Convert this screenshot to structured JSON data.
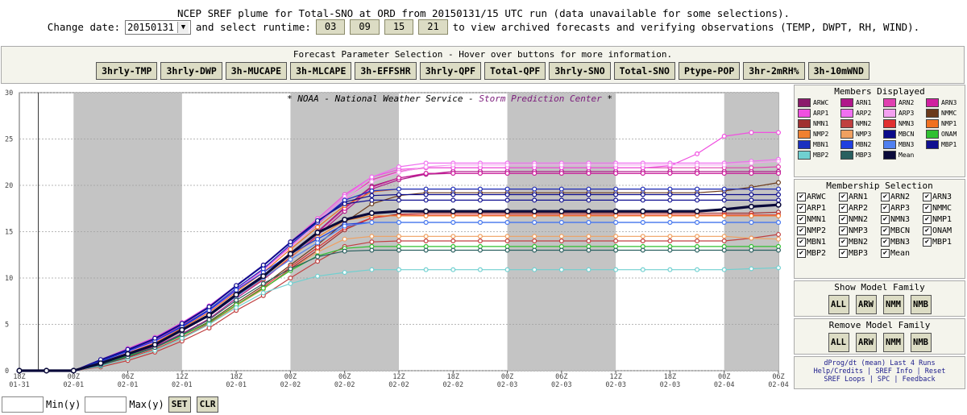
{
  "header": {
    "title": "NCEP SREF plume for Total-SNO at ORD from 20150131/15 UTC run (data unavailable for some selections).",
    "change_date_label": "Change date:",
    "selected_date": "20150131",
    "runtime_label": "and select runtime:",
    "runtimes": [
      "03",
      "09",
      "15",
      "21"
    ],
    "archive_text": "to view archived forecasts and verifying observations (TEMP, DWPT, RH, WIND)."
  },
  "params": {
    "title": "Forecast Parameter Selection - Hover over buttons for more information.",
    "buttons": [
      "3hrly-TMP",
      "3hrly-DWP",
      "3h-MUCAPE",
      "3h-MLCAPE",
      "3h-EFFSHR",
      "3hrly-QPF",
      "Total-QPF",
      "3hrly-SNO",
      "Total-SNO",
      "Ptype-POP",
      "3hr-2mRH%",
      "3h-10mWND"
    ]
  },
  "chart_header": {
    "noaa": "* NOAA - National Weather Service -",
    "spc": "Storm Prediction Center",
    "end": "*"
  },
  "colors": {
    "night_shading": "#c4c4c4",
    "mean": "#0a0a3a",
    "spc_text": "#7a1a7a"
  },
  "chart_data": {
    "type": "line",
    "title": "",
    "xlabel": "",
    "ylabel": "",
    "ylim": [
      0,
      30
    ],
    "yticks": [
      0,
      5,
      10,
      15,
      20,
      25,
      30
    ],
    "x_tick_labels": [
      [
        "18Z",
        "01-31"
      ],
      [
        "00Z",
        "02-01"
      ],
      [
        "06Z",
        "02-01"
      ],
      [
        "12Z",
        "02-01"
      ],
      [
        "18Z",
        "02-01"
      ],
      [
        "00Z",
        "02-02"
      ],
      [
        "06Z",
        "02-02"
      ],
      [
        "12Z",
        "02-02"
      ],
      [
        "18Z",
        "02-02"
      ],
      [
        "00Z",
        "02-03"
      ],
      [
        "06Z",
        "02-03"
      ],
      [
        "12Z",
        "02-03"
      ],
      [
        "18Z",
        "02-03"
      ],
      [
        "00Z",
        "02-04"
      ],
      [
        "06Z",
        "02-04"
      ]
    ],
    "x_hours_start": 18,
    "x_step_hours": 3,
    "x_count": 29,
    "night_bands": [
      [
        "02-01 00Z",
        "02-01 12Z"
      ],
      [
        "02-02 00Z",
        "02-02 12Z"
      ],
      [
        "02-03 00Z",
        "02-03 12Z"
      ],
      [
        "02-04 00Z",
        "02-04 06Z"
      ]
    ],
    "series": [
      {
        "name": "ARWC",
        "color": "#8b1a6b",
        "values": [
          0,
          0,
          0,
          0.9,
          1.9,
          2.9,
          4.4,
          6.0,
          8.2,
          10.2,
          12.6,
          15.0,
          17.6,
          19.9,
          20.8,
          21.2,
          21.3,
          21.3,
          21.3,
          21.3,
          21.3,
          21.3,
          21.3,
          21.3,
          21.3,
          21.3,
          21.3,
          21.3,
          21.3
        ]
      },
      {
        "name": "ARN1",
        "color": "#b0178a",
        "values": [
          0,
          0,
          0,
          0.7,
          1.6,
          2.6,
          4.0,
          5.6,
          7.8,
          9.8,
          12.2,
          14.6,
          17.2,
          19.6,
          20.6,
          21.2,
          21.5,
          21.5,
          21.5,
          21.5,
          21.5,
          21.5,
          21.5,
          21.5,
          21.5,
          21.5,
          21.5,
          21.5,
          21.5
        ]
      },
      {
        "name": "ARN2",
        "color": "#e040b0",
        "values": [
          0,
          0,
          0,
          1.1,
          2.2,
          3.3,
          4.9,
          6.6,
          8.8,
          10.9,
          13.4,
          15.8,
          18.4,
          20.6,
          21.5,
          21.9,
          21.9,
          21.9,
          21.9,
          21.9,
          21.9,
          21.9,
          21.9,
          21.9,
          21.9,
          21.9,
          21.9,
          21.9,
          22.0
        ]
      },
      {
        "name": "ARN3",
        "color": "#d020a0",
        "values": [
          0,
          0,
          0,
          0.8,
          1.8,
          2.8,
          4.3,
          5.9,
          8.1,
          10.1,
          12.5,
          14.9,
          17.5,
          19.8,
          20.8,
          21.3,
          21.3,
          21.3,
          21.3,
          21.3,
          21.3,
          21.3,
          21.3,
          21.3,
          21.3,
          21.3,
          21.3,
          21.3,
          21.3
        ]
      },
      {
        "name": "ARP1",
        "color": "#f050e0",
        "values": [
          0,
          0,
          0,
          1.2,
          2.4,
          3.6,
          5.2,
          7.0,
          9.2,
          11.4,
          13.9,
          16.4,
          19.0,
          20.9,
          21.7,
          21.9,
          21.9,
          21.9,
          21.9,
          21.9,
          21.9,
          21.9,
          21.9,
          21.9,
          22.1,
          23.4,
          25.3,
          25.7,
          25.7
        ]
      },
      {
        "name": "ARP2",
        "color": "#f070f0",
        "values": [
          0,
          0,
          0,
          1.0,
          2.1,
          3.2,
          4.8,
          6.5,
          8.8,
          11.0,
          13.5,
          16.1,
          18.8,
          20.9,
          22.0,
          22.4,
          22.4,
          22.4,
          22.4,
          22.4,
          22.4,
          22.4,
          22.4,
          22.4,
          22.4,
          22.4,
          22.4,
          22.6,
          22.8
        ]
      },
      {
        "name": "ARP3",
        "color": "#f4a0f0",
        "values": [
          0,
          0,
          0,
          0.9,
          2.0,
          3.1,
          4.7,
          6.4,
          8.6,
          10.8,
          13.3,
          15.9,
          18.5,
          20.4,
          21.4,
          22.0,
          22.2,
          22.2,
          22.2,
          22.2,
          22.2,
          22.2,
          22.2,
          22.2,
          22.2,
          22.2,
          22.2,
          22.4,
          22.6
        ]
      },
      {
        "name": "NMMC",
        "color": "#6b3a1a",
        "values": [
          0,
          0,
          0,
          0.6,
          1.5,
          2.5,
          3.8,
          5.3,
          7.3,
          9.2,
          11.4,
          13.6,
          16.0,
          18.0,
          18.9,
          19.2,
          19.2,
          19.2,
          19.2,
          19.2,
          19.2,
          19.2,
          19.2,
          19.2,
          19.2,
          19.2,
          19.4,
          19.8,
          20.3
        ]
      },
      {
        "name": "NMN1",
        "color": "#a03030",
        "values": [
          0,
          0,
          0,
          0.5,
          1.3,
          2.2,
          3.5,
          5.0,
          7.0,
          8.8,
          11.0,
          13.0,
          15.2,
          16.5,
          16.9,
          17.0,
          17.0,
          17.0,
          17.0,
          17.0,
          17.0,
          17.0,
          17.0,
          17.0,
          17.0,
          17.0,
          17.0,
          17.0,
          17.1
        ]
      },
      {
        "name": "NMN2",
        "color": "#c04040",
        "values": [
          0,
          0,
          0,
          0.4,
          1.1,
          2.0,
          3.2,
          4.6,
          6.5,
          8.1,
          10.0,
          11.8,
          13.4,
          13.9,
          14.0,
          14.0,
          14.0,
          14.0,
          14.0,
          14.0,
          14.0,
          14.0,
          14.0,
          14.0,
          14.0,
          14.0,
          14.0,
          14.3,
          14.7
        ]
      },
      {
        "name": "NMN3",
        "color": "#e03030",
        "values": [
          0,
          0,
          0,
          0.6,
          1.4,
          2.3,
          3.6,
          5.1,
          7.1,
          9.0,
          11.2,
          13.3,
          15.4,
          16.5,
          16.8,
          16.8,
          16.8,
          16.8,
          16.8,
          16.8,
          16.8,
          16.8,
          16.8,
          16.8,
          16.8,
          16.8,
          16.8,
          16.8,
          16.8
        ]
      },
      {
        "name": "NMP1",
        "color": "#f07020",
        "values": [
          0,
          0,
          0,
          0.9,
          1.9,
          3.0,
          4.6,
          6.3,
          8.5,
          10.6,
          13.1,
          15.5,
          17.8,
          19.3,
          19.6,
          19.6,
          19.6,
          19.6,
          19.6,
          19.6,
          19.6,
          19.6,
          19.6,
          19.6,
          19.6,
          19.6,
          19.6,
          19.6,
          19.6
        ]
      },
      {
        "name": "NMP2",
        "color": "#f08030",
        "values": [
          0,
          0,
          0,
          0.8,
          1.8,
          2.8,
          4.3,
          5.9,
          8.0,
          9.9,
          12.3,
          14.4,
          16.2,
          16.7,
          16.7,
          16.7,
          16.7,
          16.7,
          16.7,
          16.7,
          16.7,
          16.7,
          16.7,
          16.7,
          16.7,
          16.7,
          16.7,
          16.7,
          16.7
        ]
      },
      {
        "name": "NMP3",
        "color": "#f0a060",
        "values": [
          0,
          0,
          0,
          0.5,
          1.3,
          2.2,
          3.5,
          5.0,
          7.0,
          8.8,
          10.9,
          12.8,
          14.2,
          14.5,
          14.5,
          14.5,
          14.5,
          14.5,
          14.5,
          14.5,
          14.5,
          14.5,
          14.5,
          14.5,
          14.5,
          14.5,
          14.5,
          14.3,
          14.2
        ]
      },
      {
        "name": "MBCN",
        "color": "#0a0a8a",
        "values": [
          0,
          0,
          0,
          1.1,
          2.2,
          3.4,
          5.0,
          6.8,
          9.1,
          11.3,
          13.8,
          16.1,
          18.2,
          18.9,
          19.0,
          19.0,
          19.0,
          19.0,
          19.0,
          19.0,
          19.0,
          19.0,
          19.0,
          19.0,
          19.0,
          19.0,
          19.0,
          19.0,
          19.0
        ]
      },
      {
        "name": "ONAM",
        "color": "#30c030",
        "values": [
          0,
          0,
          0,
          0.7,
          1.6,
          2.5,
          3.8,
          5.2,
          7.1,
          8.9,
          10.8,
          12.4,
          13.2,
          13.4,
          13.4,
          13.4,
          13.4,
          13.4,
          13.4,
          13.4,
          13.4,
          13.4,
          13.4,
          13.4,
          13.4,
          13.4,
          13.4,
          13.4,
          13.4
        ]
      },
      {
        "name": "MBN1",
        "color": "#1a30c0",
        "values": [
          0,
          0,
          0,
          1.0,
          2.1,
          3.2,
          4.8,
          6.6,
          8.9,
          11.0,
          13.6,
          16.0,
          18.4,
          19.4,
          19.6,
          19.6,
          19.6,
          19.6,
          19.6,
          19.6,
          19.6,
          19.6,
          19.6,
          19.6,
          19.6,
          19.6,
          19.6,
          19.6,
          19.6
        ]
      },
      {
        "name": "MBN2",
        "color": "#2040e0",
        "values": [
          0,
          0,
          0,
          1.0,
          2.1,
          3.2,
          4.7,
          6.5,
          8.7,
          10.6,
          12.6,
          14.2,
          15.8,
          16.0,
          16.0,
          16.0,
          16.0,
          16.0,
          16.0,
          16.0,
          16.0,
          16.0,
          16.0,
          16.0,
          16.0,
          16.0,
          16.0,
          16.0,
          16.0
        ]
      },
      {
        "name": "MBN3",
        "color": "#5080f0",
        "values": [
          0,
          0,
          0,
          0.8,
          1.8,
          2.8,
          4.3,
          5.9,
          8.0,
          10.0,
          12.0,
          13.8,
          15.6,
          16.0,
          16.0,
          16.0,
          16.0,
          16.0,
          16.0,
          16.0,
          16.0,
          16.0,
          16.0,
          16.0,
          16.0,
          16.0,
          16.0,
          16.0,
          16.0
        ]
      },
      {
        "name": "MBP1",
        "color": "#101090",
        "values": [
          0,
          0,
          0,
          1.2,
          2.3,
          3.5,
          5.1,
          6.9,
          9.2,
          11.4,
          13.9,
          16.2,
          18.0,
          18.4,
          18.4,
          18.4,
          18.4,
          18.4,
          18.4,
          18.4,
          18.4,
          18.4,
          18.4,
          18.4,
          18.4,
          18.4,
          18.4,
          18.4,
          18.4
        ]
      },
      {
        "name": "MBP2",
        "color": "#70d0d0",
        "values": [
          0,
          0,
          0,
          0.5,
          1.3,
          2.2,
          3.5,
          5.0,
          6.8,
          8.4,
          9.4,
          10.2,
          10.6,
          10.9,
          10.9,
          10.9,
          10.9,
          10.9,
          10.9,
          10.9,
          10.9,
          10.9,
          10.9,
          10.9,
          10.9,
          10.9,
          10.9,
          11.0,
          11.1
        ]
      },
      {
        "name": "MBP3",
        "color": "#2a6060",
        "values": [
          0,
          0,
          0,
          0.6,
          1.5,
          2.5,
          3.9,
          5.5,
          7.6,
          9.4,
          11.0,
          12.3,
          12.9,
          13.0,
          13.0,
          13.0,
          13.0,
          13.0,
          13.0,
          13.0,
          13.0,
          13.0,
          13.0,
          13.0,
          13.0,
          13.0,
          13.0,
          13.0,
          13.0
        ]
      },
      {
        "name": "Mean",
        "color": "#0a0a3a",
        "values": [
          0,
          0,
          0,
          0.8,
          1.8,
          2.8,
          4.4,
          6.0,
          8.2,
          10.2,
          12.6,
          14.9,
          16.3,
          17.0,
          17.2,
          17.2,
          17.2,
          17.2,
          17.2,
          17.2,
          17.2,
          17.2,
          17.2,
          17.2,
          17.2,
          17.2,
          17.4,
          17.7,
          17.9
        ]
      }
    ]
  },
  "members_displayed": {
    "title": "Members Displayed",
    "items": [
      {
        "label": "ARWC",
        "color": "#8b1a6b"
      },
      {
        "label": "ARN1",
        "color": "#b0178a"
      },
      {
        "label": "ARN2",
        "color": "#e040b0"
      },
      {
        "label": "ARN3",
        "color": "#d020a0"
      },
      {
        "label": "ARP1",
        "color": "#f050e0"
      },
      {
        "label": "ARP2",
        "color": "#f070f0"
      },
      {
        "label": "ARP3",
        "color": "#f4a0f0"
      },
      {
        "label": "NMMC",
        "color": "#6b3a1a"
      },
      {
        "label": "NMN1",
        "color": "#a03030"
      },
      {
        "label": "NMN2",
        "color": "#c04040"
      },
      {
        "label": "NMN3",
        "color": "#e03030"
      },
      {
        "label": "NMP1",
        "color": "#f07020"
      },
      {
        "label": "NMP2",
        "color": "#f08030"
      },
      {
        "label": "NMP3",
        "color": "#f0a060"
      },
      {
        "label": "MBCN",
        "color": "#0a0a8a"
      },
      {
        "label": "ONAM",
        "color": "#30c030"
      },
      {
        "label": "MBN1",
        "color": "#1a30c0"
      },
      {
        "label": "MBN2",
        "color": "#2040e0"
      },
      {
        "label": "MBN3",
        "color": "#5080f0"
      },
      {
        "label": "MBP1",
        "color": "#101090"
      },
      {
        "label": "MBP2",
        "color": "#70d0d0"
      },
      {
        "label": "MBP3",
        "color": "#2a6060"
      },
      {
        "label": "Mean",
        "color": "#0a0a3a"
      }
    ]
  },
  "membership_selection": {
    "title": "Membership Selection",
    "items": [
      "ARWC",
      "ARN1",
      "ARN2",
      "ARN3",
      "ARP1",
      "ARP2",
      "ARP3",
      "NMMC",
      "NMN1",
      "NMN2",
      "NMN3",
      "NMP1",
      "NMP2",
      "NMP3",
      "MBCN",
      "ONAM",
      "MBN1",
      "MBN2",
      "MBN3",
      "MBP1",
      "MBP2",
      "MBP3",
      "Mean"
    ]
  },
  "show_family": {
    "title": "Show Model Family",
    "buttons": [
      "ALL",
      "ARW",
      "NMM",
      "NMB"
    ]
  },
  "remove_family": {
    "title": "Remove Model Family",
    "buttons": [
      "ALL",
      "ARW",
      "NMM",
      "NMB"
    ]
  },
  "links": {
    "line1": "dProg/dt (mean) Last 4 Runs",
    "line2": "Help/Credits | SREF Info | Reset",
    "line3": "SREF Loops | SPC | Feedback"
  },
  "bottom": {
    "min_label": "Min(y)",
    "max_label": "Max(y)",
    "set_label": "SET",
    "clr_label": "CLR"
  }
}
